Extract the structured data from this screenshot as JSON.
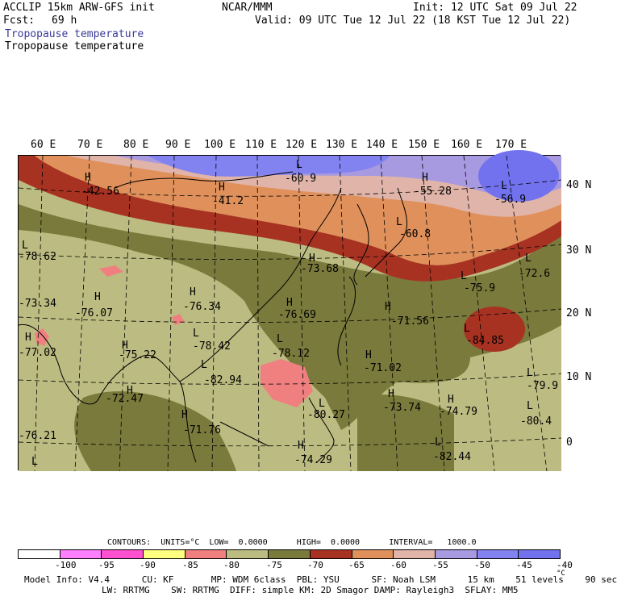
{
  "header": {
    "model": "ACCLIP 15km ARW-GFS init",
    "org": "NCAR/MMM",
    "init": "Init: 12 UTC Sat 09 Jul 22",
    "fcst_label": "Fcst:",
    "fcst_value": "69 h",
    "valid": "Valid: 09 UTC Tue 12 Jul 22 (18 KST Tue 12 Jul 22)",
    "field_title_1": "Tropopause temperature",
    "field_title_2": "Tropopause temperature"
  },
  "map": {
    "lon_labels": [
      "60 E",
      "70 E",
      "80 E",
      "90 E",
      "100 E",
      "110 E",
      "120 E",
      "130 E",
      "140 E",
      "150 E",
      "160 E",
      "170 E"
    ],
    "lat_labels": [
      "40 N",
      "30 N",
      "20 N",
      "10 N",
      "0"
    ],
    "annotations": [
      {
        "mark": "H",
        "value": "-42.56"
      },
      {
        "mark": "H",
        "value": "-41.2"
      },
      {
        "mark": "L",
        "value": "-60.9"
      },
      {
        "mark": "H",
        "value": "-55.28"
      },
      {
        "mark": "L",
        "value": "-56.9"
      },
      {
        "mark": "L",
        "value": "-60.8"
      },
      {
        "mark": "L",
        "value": "-78.62"
      },
      {
        "mark": "H",
        "value": "-73.68"
      },
      {
        "mark": "L",
        "value": "-75.9"
      },
      {
        "mark": "L",
        "value": "-72.6"
      },
      {
        "mark": "H",
        "value": "-76.07"
      },
      {
        "mark": "H",
        "value": "-76.34"
      },
      {
        "mark": "H",
        "value": "-76.69"
      },
      {
        "mark": "H",
        "value": "-71.56"
      },
      {
        "mark": "L",
        "value": "-84.85"
      },
      {
        "mark": "L",
        "value": "-73.34"
      },
      {
        "mark": "H",
        "value": "-77.02"
      },
      {
        "mark": "H",
        "value": "-75.22"
      },
      {
        "mark": "L",
        "value": "-78.42"
      },
      {
        "mark": "L",
        "value": "-78.12"
      },
      {
        "mark": "H",
        "value": "-71.02"
      },
      {
        "mark": "L",
        "value": "-82.94"
      },
      {
        "mark": "L",
        "value": "-79.9"
      },
      {
        "mark": "H",
        "value": "-72.47"
      },
      {
        "mark": "H",
        "value": "-73.74"
      },
      {
        "mark": "H",
        "value": "-74.79"
      },
      {
        "mark": "L",
        "value": "-80.27"
      },
      {
        "mark": "L",
        "value": "-80.4"
      },
      {
        "mark": "H",
        "value": "-71.76"
      },
      {
        "mark": "L",
        "value": "-76.21"
      },
      {
        "mark": "H",
        "value": "-74.29"
      },
      {
        "mark": "L",
        "value": "-82.44"
      }
    ]
  },
  "legend": {
    "contours_line": "CONTOURS:  UNITS=°C  LOW=  0.0000      HIGH=  0.0000      INTERVAL=   1000.0",
    "colors": [
      "#ffffff",
      "#ff80ff",
      "#ff50d0",
      "#ffff80",
      "#f08080",
      "#bcbc82",
      "#7a7a3c",
      "#a83222",
      "#e0905a",
      "#e0b4a8",
      "#a89ae0",
      "#8282f0",
      "#7272ee"
    ],
    "labels": [
      "-100",
      "-95",
      "-90",
      "-85",
      "-80",
      "-75",
      "-70",
      "-65",
      "-60",
      "-55",
      "-50",
      "-45",
      "-40",
      "°C"
    ]
  },
  "footer": {
    "line1": "Model Info: V4.4      CU: KF       MP: WDM 6class  PBL: YSU      SF: Noah LSM      15 km    51 levels    90 sec",
    "line2": "LW: RRTMG    SW: RRTMG  DIFF: simple KM: 2D Smagor DAMP: Rayleigh3  SFLAY: MM5"
  }
}
